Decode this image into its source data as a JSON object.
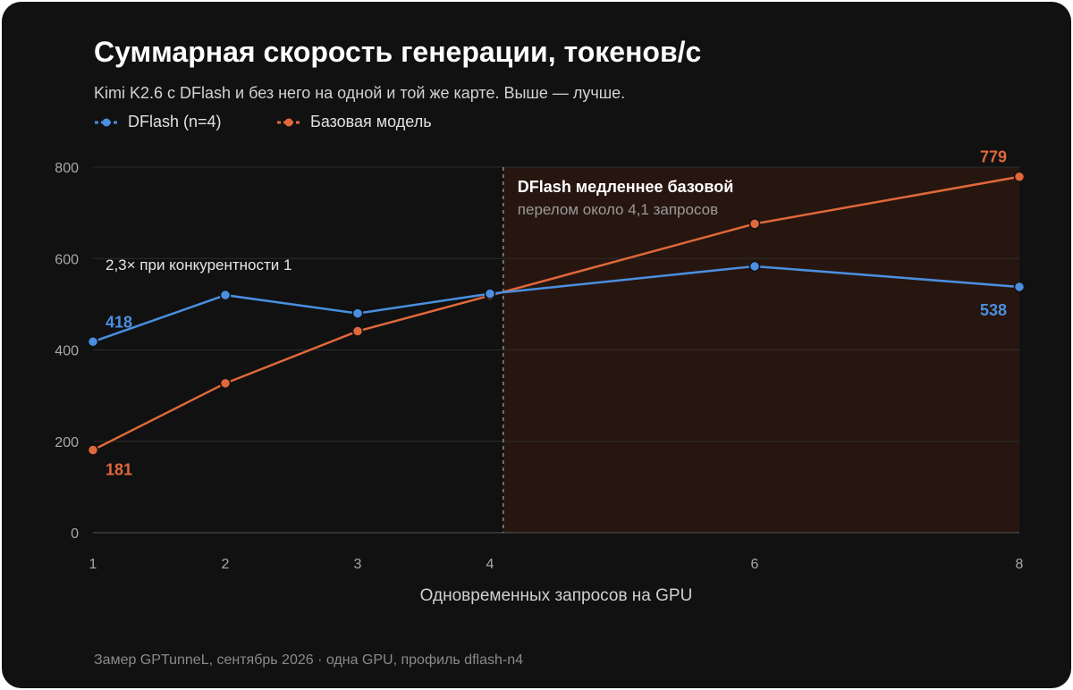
{
  "title": "Суммарная скорость генерации, токенов/с",
  "subtitle": "Kimi K2.6 с DFlash и без него на одной и той же карте. Выше — лучше.",
  "footer": "Замер GPTunneL, сентябрь 2026 · одна GPU, профиль dflash-n4",
  "colors": {
    "background": "#111111",
    "dflash": "#4a8fe0",
    "base": "#e0683a",
    "region": "#2a1710",
    "grid": "#2c2c2c"
  },
  "chart_data": {
    "type": "line",
    "title": "Суммарная скорость генерации, токенов/с",
    "subtitle": "Kimi K2.6 с DFlash и без него на одной и той же карте. Выше — лучше.",
    "xlabel": "Одновременных запросов на GPU",
    "ylabel": "",
    "xlim": [
      1,
      8
    ],
    "ylim": [
      0,
      800
    ],
    "x_ticks": [
      1,
      2,
      3,
      4,
      6,
      8
    ],
    "y_ticks": [
      0,
      200,
      400,
      600,
      800
    ],
    "grid": "horizontal",
    "legend_position": "top-left",
    "series": [
      {
        "name": "DFlash (n=4)",
        "color": "#4a8fe0",
        "x": [
          1,
          2,
          3,
          4,
          6,
          8
        ],
        "y": [
          418,
          520,
          480,
          523,
          583,
          538
        ]
      },
      {
        "name": "Базовая модель",
        "color": "#e0683a",
        "x": [
          1,
          2,
          3,
          4,
          6,
          8
        ],
        "y": [
          181,
          327,
          441,
          519,
          676,
          779
        ]
      }
    ],
    "data_labels": [
      {
        "series": 0,
        "x": 1,
        "text": "418"
      },
      {
        "series": 0,
        "x": 8,
        "text": "538"
      },
      {
        "series": 1,
        "x": 1,
        "text": "181"
      },
      {
        "series": 1,
        "x": 8,
        "text": "779"
      }
    ],
    "crossover": {
      "x": 4.1,
      "title": "DFlash медленнее базовой",
      "note": "перелом около 4,1 запросов"
    },
    "annotation": "2,3× при конкурентности 1"
  }
}
